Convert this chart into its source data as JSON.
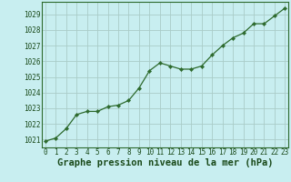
{
  "x": [
    0,
    1,
    2,
    3,
    4,
    5,
    6,
    7,
    8,
    9,
    10,
    11,
    12,
    13,
    14,
    15,
    16,
    17,
    18,
    19,
    20,
    21,
    22,
    23
  ],
  "y": [
    1020.9,
    1021.1,
    1021.7,
    1022.6,
    1022.8,
    1022.8,
    1023.1,
    1023.2,
    1023.5,
    1024.3,
    1025.4,
    1025.9,
    1025.7,
    1025.5,
    1025.5,
    1025.7,
    1026.4,
    1027.0,
    1027.5,
    1027.8,
    1028.4,
    1028.4,
    1028.9,
    1029.4
  ],
  "line_color": "#2d6a2d",
  "marker": "D",
  "marker_size": 2.2,
  "bg_color": "#c8eef0",
  "grid_color": "#aaccc8",
  "xlabel": "Graphe pression niveau de la mer (hPa)",
  "xlabel_fontsize": 7.5,
  "xlabel_color": "#1a4a1a",
  "tick_color": "#1a4a1a",
  "tick_fontsize": 5.5,
  "ylim": [
    1020.5,
    1029.8
  ],
  "yticks": [
    1021,
    1022,
    1023,
    1024,
    1025,
    1026,
    1027,
    1028,
    1029
  ],
  "xticks": [
    0,
    1,
    2,
    3,
    4,
    5,
    6,
    7,
    8,
    9,
    10,
    11,
    12,
    13,
    14,
    15,
    16,
    17,
    18,
    19,
    20,
    21,
    22,
    23
  ],
  "xlim": [
    -0.3,
    23.3
  ]
}
